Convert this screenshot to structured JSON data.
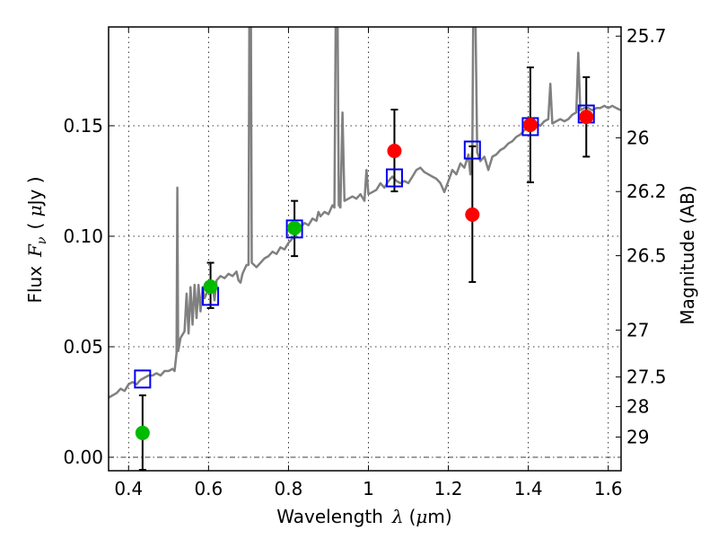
{
  "chart_data": {
    "type": "scatter",
    "title": "",
    "xlabel": "Wavelength  λ (μm)",
    "ylabel": "Flux  F_ν  ( μJy )",
    "ylabel_parts": {
      "prefix": "Flux",
      "symbol": "F",
      "subscript": "ν",
      "unit_open": "( ",
      "unit_mu": "μ",
      "unit_rest": "Jy )"
    },
    "xlabel_parts": {
      "prefix": "Wavelength",
      "symbol": "λ",
      "unit_open": "(",
      "unit_mu": "μ",
      "unit_rest": "m)"
    },
    "y2label": "Magnitude (AB)",
    "xlim": [
      0.35,
      1.632
    ],
    "ylim": [
      -0.0061,
      0.1947
    ],
    "grid": true,
    "x_ticks": [
      0.4,
      0.6,
      0.8,
      1.0,
      1.2,
      1.4,
      1.6
    ],
    "x_tick_labels": [
      "0.4",
      "0.6",
      "0.8",
      "1",
      "1.2",
      "1.4",
      "1.6"
    ],
    "y_ticks": [
      0.0,
      0.05,
      0.1,
      0.15
    ],
    "y_tick_labels": [
      "0.00",
      "0.05",
      "0.10",
      "0.15"
    ],
    "y2_ticks": [
      {
        "label": "25.7",
        "mag": 25.7
      },
      {
        "label": "26",
        "mag": 26.0
      },
      {
        "label": "26.2",
        "mag": 26.2
      },
      {
        "label": "26.5",
        "mag": 26.5
      },
      {
        "label": "27",
        "mag": 27.0
      },
      {
        "label": "27.5",
        "mag": 27.5
      },
      {
        "label": "28",
        "mag": 28.0
      },
      {
        "label": "29",
        "mag": 29.0
      }
    ],
    "zero_line": {
      "y": 0.0,
      "style": "dash-dot"
    },
    "colors": {
      "spectrum": "#808080",
      "model_box": "#0000ee",
      "green_obs": "#00bb00",
      "red_obs": "#ff0000",
      "errorbar": "#000000"
    },
    "series": [
      {
        "name": "model-spectrum",
        "kind": "line",
        "points": [
          [
            0.35,
            0.027
          ],
          [
            0.36,
            0.028
          ],
          [
            0.37,
            0.029
          ],
          [
            0.38,
            0.031
          ],
          [
            0.39,
            0.03
          ],
          [
            0.4,
            0.033
          ],
          [
            0.41,
            0.034
          ],
          [
            0.42,
            0.033
          ],
          [
            0.43,
            0.035
          ],
          [
            0.44,
            0.036
          ],
          [
            0.45,
            0.037
          ],
          [
            0.46,
            0.037
          ],
          [
            0.47,
            0.038
          ],
          [
            0.48,
            0.037
          ],
          [
            0.49,
            0.039
          ],
          [
            0.5,
            0.039
          ],
          [
            0.51,
            0.04
          ],
          [
            0.515,
            0.039
          ],
          [
            0.52,
            0.047
          ],
          [
            0.522,
            0.122
          ],
          [
            0.524,
            0.048
          ],
          [
            0.53,
            0.054
          ],
          [
            0.54,
            0.057
          ],
          [
            0.545,
            0.074
          ],
          [
            0.55,
            0.056
          ],
          [
            0.555,
            0.077
          ],
          [
            0.56,
            0.06
          ],
          [
            0.565,
            0.078
          ],
          [
            0.57,
            0.063
          ],
          [
            0.575,
            0.078
          ],
          [
            0.58,
            0.066
          ],
          [
            0.585,
            0.077
          ],
          [
            0.59,
            0.072
          ],
          [
            0.6,
            0.076
          ],
          [
            0.605,
            0.075
          ],
          [
            0.61,
            0.078
          ],
          [
            0.615,
            0.071
          ],
          [
            0.62,
            0.08
          ],
          [
            0.63,
            0.082
          ],
          [
            0.64,
            0.081
          ],
          [
            0.65,
            0.083
          ],
          [
            0.66,
            0.082
          ],
          [
            0.67,
            0.084
          ],
          [
            0.675,
            0.08
          ],
          [
            0.68,
            0.079
          ],
          [
            0.685,
            0.083
          ],
          [
            0.69,
            0.085
          ],
          [
            0.695,
            0.087
          ],
          [
            0.7,
            0.087
          ],
          [
            0.702,
            0.195
          ],
          [
            0.706,
            0.195
          ],
          [
            0.708,
            0.088
          ],
          [
            0.72,
            0.086
          ],
          [
            0.73,
            0.088
          ],
          [
            0.74,
            0.09
          ],
          [
            0.75,
            0.091
          ],
          [
            0.76,
            0.093
          ],
          [
            0.77,
            0.092
          ],
          [
            0.78,
            0.095
          ],
          [
            0.79,
            0.094
          ],
          [
            0.8,
            0.097
          ],
          [
            0.81,
            0.099
          ],
          [
            0.82,
            0.101
          ],
          [
            0.83,
            0.104
          ],
          [
            0.84,
            0.106
          ],
          [
            0.85,
            0.105
          ],
          [
            0.86,
            0.108
          ],
          [
            0.87,
            0.107
          ],
          [
            0.875,
            0.111
          ],
          [
            0.88,
            0.109
          ],
          [
            0.89,
            0.111
          ],
          [
            0.9,
            0.11
          ],
          [
            0.91,
            0.114
          ],
          [
            0.915,
            0.113
          ],
          [
            0.918,
            0.195
          ],
          [
            0.923,
            0.195
          ],
          [
            0.926,
            0.114
          ],
          [
            0.93,
            0.113
          ],
          [
            0.935,
            0.156
          ],
          [
            0.94,
            0.116
          ],
          [
            0.95,
            0.117
          ],
          [
            0.96,
            0.118
          ],
          [
            0.97,
            0.117
          ],
          [
            0.98,
            0.119
          ],
          [
            0.99,
            0.116
          ],
          [
            0.995,
            0.13
          ],
          [
            1.0,
            0.119
          ],
          [
            1.01,
            0.12
          ],
          [
            1.02,
            0.121
          ],
          [
            1.03,
            0.124
          ],
          [
            1.04,
            0.122
          ],
          [
            1.05,
            0.125
          ],
          [
            1.06,
            0.127
          ],
          [
            1.07,
            0.125
          ],
          [
            1.08,
            0.124
          ],
          [
            1.09,
            0.125
          ],
          [
            1.1,
            0.124
          ],
          [
            1.11,
            0.127
          ],
          [
            1.12,
            0.13
          ],
          [
            1.13,
            0.131
          ],
          [
            1.14,
            0.129
          ],
          [
            1.15,
            0.128
          ],
          [
            1.16,
            0.127
          ],
          [
            1.17,
            0.126
          ],
          [
            1.18,
            0.124
          ],
          [
            1.19,
            0.12
          ],
          [
            1.2,
            0.125
          ],
          [
            1.21,
            0.13
          ],
          [
            1.22,
            0.128
          ],
          [
            1.23,
            0.133
          ],
          [
            1.24,
            0.131
          ],
          [
            1.25,
            0.137
          ],
          [
            1.255,
            0.128
          ],
          [
            1.26,
            0.14
          ],
          [
            1.262,
            0.195
          ],
          [
            1.268,
            0.195
          ],
          [
            1.272,
            0.138
          ],
          [
            1.28,
            0.134
          ],
          [
            1.29,
            0.136
          ],
          [
            1.3,
            0.13
          ],
          [
            1.31,
            0.136
          ],
          [
            1.32,
            0.137
          ],
          [
            1.33,
            0.139
          ],
          [
            1.34,
            0.14
          ],
          [
            1.35,
            0.142
          ],
          [
            1.36,
            0.143
          ],
          [
            1.37,
            0.145
          ],
          [
            1.38,
            0.146
          ],
          [
            1.39,
            0.148
          ],
          [
            1.4,
            0.149
          ],
          [
            1.41,
            0.15
          ],
          [
            1.42,
            0.151
          ],
          [
            1.43,
            0.15
          ],
          [
            1.44,
            0.152
          ],
          [
            1.45,
            0.153
          ],
          [
            1.455,
            0.169
          ],
          [
            1.46,
            0.151
          ],
          [
            1.47,
            0.152
          ],
          [
            1.48,
            0.153
          ],
          [
            1.49,
            0.152
          ],
          [
            1.5,
            0.153
          ],
          [
            1.51,
            0.155
          ],
          [
            1.52,
            0.156
          ],
          [
            1.525,
            0.183
          ],
          [
            1.53,
            0.157
          ],
          [
            1.54,
            0.158
          ],
          [
            1.55,
            0.158
          ],
          [
            1.56,
            0.157
          ],
          [
            1.57,
            0.158
          ],
          [
            1.58,
            0.158
          ],
          [
            1.59,
            0.159
          ],
          [
            1.6,
            0.158
          ],
          [
            1.61,
            0.159
          ],
          [
            1.62,
            0.158
          ],
          [
            1.632,
            0.157
          ]
        ]
      },
      {
        "name": "model-photometry",
        "kind": "open-square",
        "x": [
          0.435,
          0.605,
          0.815,
          1.065,
          1.26,
          1.405,
          1.545
        ],
        "y": [
          0.0354,
          0.0728,
          0.1033,
          0.1264,
          0.139,
          0.1496,
          0.1553
        ]
      },
      {
        "name": "observed-optical",
        "kind": "filled-circle-errorbar",
        "color_key": "green_obs",
        "x": [
          0.435,
          0.605,
          0.815
        ],
        "y": [
          0.011,
          0.0772,
          0.1037
        ],
        "err_low": [
          -0.0057,
          0.0675,
          0.091
        ],
        "err_high": [
          0.028,
          0.088,
          0.116
        ]
      },
      {
        "name": "observed-nir",
        "kind": "filled-circle-errorbar",
        "color_key": "red_obs",
        "x": [
          1.065,
          1.26,
          1.405,
          1.545
        ],
        "y": [
          0.1386,
          0.1098,
          0.1504,
          0.154
        ],
        "err_low": [
          0.1203,
          0.0793,
          0.1244,
          0.136
        ],
        "err_high": [
          0.1573,
          0.1407,
          0.1764,
          0.172
        ]
      }
    ]
  }
}
